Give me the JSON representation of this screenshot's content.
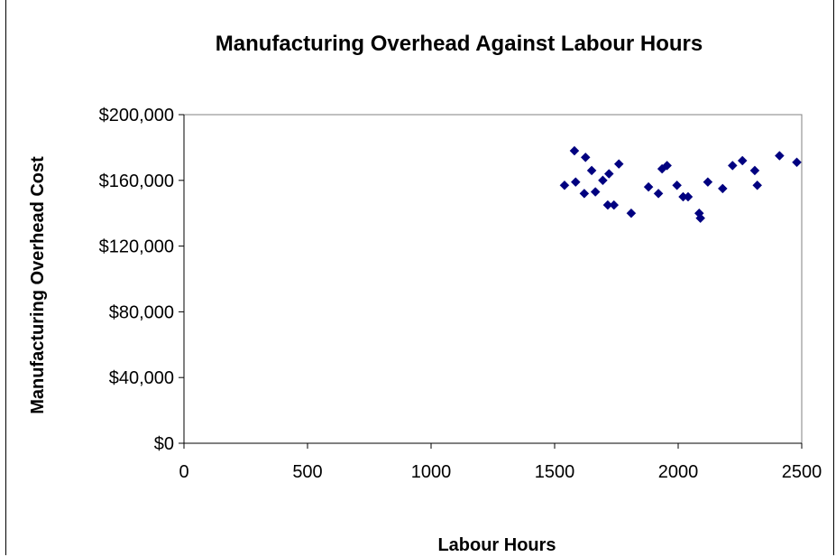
{
  "chart_data": {
    "type": "scatter",
    "title": "Manufacturing Overhead Against Labour Hours",
    "xlabel": "Labour Hours",
    "ylabel": "Manufacturing Overhead Cost",
    "xlim": [
      0,
      2500
    ],
    "ylim": [
      0,
      200000
    ],
    "x_ticks": [
      0,
      500,
      1000,
      1500,
      2000,
      2500
    ],
    "x_tick_labels": [
      "0",
      "500",
      "1000",
      "1500",
      "2000",
      "2500"
    ],
    "y_ticks": [
      0,
      40000,
      80000,
      120000,
      160000,
      200000
    ],
    "y_tick_labels": [
      "$0",
      "$40,000",
      "$80,000",
      "$120,000",
      "$160,000",
      "$200,000"
    ],
    "grid": false,
    "legend": "none",
    "marker": "diamond",
    "marker_color": "#000080",
    "points": [
      {
        "x": 1540,
        "y": 157000
      },
      {
        "x": 1580,
        "y": 178000
      },
      {
        "x": 1585,
        "y": 159000
      },
      {
        "x": 1620,
        "y": 152000
      },
      {
        "x": 1625,
        "y": 174000
      },
      {
        "x": 1650,
        "y": 166000
      },
      {
        "x": 1665,
        "y": 153000
      },
      {
        "x": 1695,
        "y": 160000
      },
      {
        "x": 1715,
        "y": 145000
      },
      {
        "x": 1720,
        "y": 164000
      },
      {
        "x": 1740,
        "y": 145000
      },
      {
        "x": 1760,
        "y": 170000
      },
      {
        "x": 1810,
        "y": 140000
      },
      {
        "x": 1880,
        "y": 156000
      },
      {
        "x": 1920,
        "y": 152000
      },
      {
        "x": 1935,
        "y": 167000
      },
      {
        "x": 1955,
        "y": 169000
      },
      {
        "x": 1995,
        "y": 157000
      },
      {
        "x": 2020,
        "y": 150000
      },
      {
        "x": 2040,
        "y": 150000
      },
      {
        "x": 2085,
        "y": 140000
      },
      {
        "x": 2090,
        "y": 137000
      },
      {
        "x": 2120,
        "y": 159000
      },
      {
        "x": 2180,
        "y": 155000
      },
      {
        "x": 2220,
        "y": 169000
      },
      {
        "x": 2260,
        "y": 172000
      },
      {
        "x": 2310,
        "y": 166000
      },
      {
        "x": 2320,
        "y": 157000
      },
      {
        "x": 2410,
        "y": 175000
      },
      {
        "x": 2480,
        "y": 171000
      }
    ]
  }
}
